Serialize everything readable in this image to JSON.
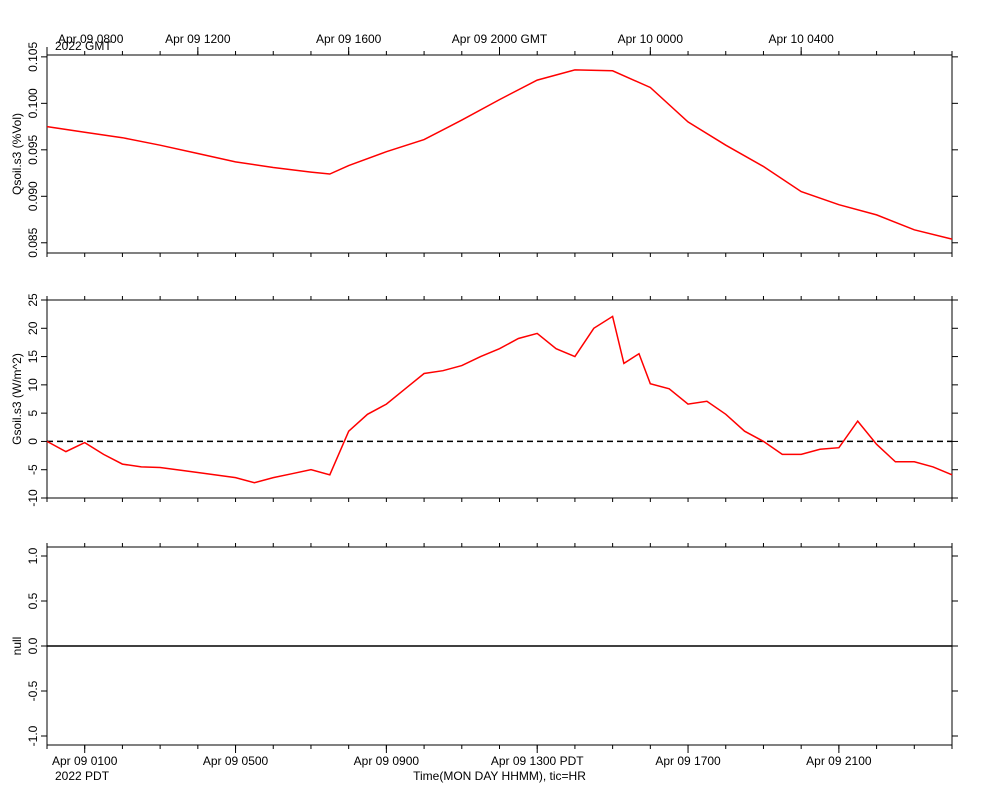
{
  "chart_data": [
    {
      "type": "line",
      "ylabel": "Qsoil.s3 (%Vol)",
      "xlim": [
        0,
        24
      ],
      "minor_tick_step": 1,
      "ylim": [
        0.0839,
        0.1052
      ],
      "yticks": [
        0.085,
        {
          "value": 0.09,
          "label": "0.090"
        },
        0.095,
        {
          "value": 0.1,
          "label": "0.100"
        },
        0.105
      ],
      "x2ticks": [
        {
          "value": 0,
          "label": "Apr 09 0800"
        },
        {
          "value": 4,
          "label": "Apr 09 1200"
        },
        {
          "value": 8,
          "label": "Apr 09 1600"
        },
        {
          "value": 12,
          "label": "Apr 09 2000 GMT"
        },
        {
          "value": 16,
          "label": "Apr 10 0000"
        },
        {
          "value": 20,
          "label": "Apr 10 0400"
        }
      ],
      "x2_year_label": "2022 GMT",
      "x": [
        0,
        1,
        2,
        3,
        4,
        5,
        6,
        7,
        7.5,
        8,
        9,
        10,
        11,
        12,
        13,
        14,
        15,
        16,
        17,
        18,
        19,
        20,
        21,
        22,
        23,
        24
      ],
      "series": [
        {
          "name": "Qsoil.s3",
          "color": "#ff0000",
          "values": [
            0.0975,
            0.0969,
            0.0963,
            0.0955,
            0.0946,
            0.0937,
            0.0931,
            0.0926,
            0.0924,
            0.0933,
            0.0948,
            0.0961,
            0.0982,
            0.1004,
            0.1025,
            0.1036,
            0.1035,
            0.1017,
            0.098,
            0.0955,
            0.0932,
            0.0905,
            0.0891,
            0.088,
            0.0864,
            0.0854
          ]
        }
      ]
    },
    {
      "type": "line",
      "ylabel": "Gsoil.s3 (W/m^2)",
      "xlim": [
        0,
        24
      ],
      "minor_tick_step": 1,
      "ylim": [
        -10,
        25
      ],
      "yticks": [
        -10,
        -5,
        0,
        5,
        10,
        15,
        20,
        25
      ],
      "reference_line": 0,
      "x": [
        0,
        0.5,
        1,
        1.5,
        2,
        2.5,
        3,
        4,
        5,
        5.5,
        6,
        6.5,
        7,
        7.5,
        8,
        8.5,
        9,
        9.5,
        10,
        10.5,
        11,
        11.5,
        12,
        12.5,
        13,
        13.5,
        14,
        14.5,
        15,
        15.3,
        15.7,
        16,
        16.5,
        17,
        17.5,
        18,
        18.5,
        19,
        19.5,
        20,
        20.5,
        21,
        21.5,
        22,
        22.5,
        23,
        23.5,
        24
      ],
      "series": [
        {
          "name": "Gsoil.s3",
          "color": "#ff0000",
          "values": [
            0,
            -1.8,
            -0.2,
            -2.3,
            -4,
            -4.5,
            -4.6,
            -5.5,
            -6.4,
            -7.3,
            -6.4,
            -5.7,
            -5,
            -5.9,
            1.8,
            4.8,
            6.6,
            9.3,
            12,
            12.5,
            13.4,
            15,
            16.4,
            18.2,
            19.1,
            16.4,
            15,
            20,
            22.1,
            13.8,
            15.5,
            10.2,
            9.3,
            6.6,
            7.1,
            4.8,
            1.8,
            0,
            -2.3,
            -2.3,
            -1.4,
            -1.1,
            3.6,
            -0.5,
            -3.6,
            -3.6,
            -4.5,
            -5.9
          ]
        }
      ]
    },
    {
      "type": "line",
      "ylabel": "null",
      "xlim": [
        0,
        24
      ],
      "minor_tick_step": 1,
      "ylim": [
        -1.1,
        1.1
      ],
      "yticks": [
        {
          "value": -1,
          "label": "-1.0"
        },
        -0.5,
        {
          "value": 0,
          "label": "0.0"
        },
        0.5,
        {
          "value": 1,
          "label": "1.0"
        }
      ],
      "xticks": [
        {
          "value": 1,
          "label": "Apr 09 0100"
        },
        {
          "value": 5,
          "label": "Apr 09 0500"
        },
        {
          "value": 9,
          "label": "Apr 09 0900"
        },
        {
          "value": 13,
          "label": "Apr 09 1300 PDT"
        },
        {
          "value": 17,
          "label": "Apr 09 1700"
        },
        {
          "value": 21,
          "label": "Apr 09 2100"
        }
      ],
      "x_year_label": "2022 PDT",
      "xlabel": "Time(MON DAY HHMM), tic=HR",
      "x": [
        0,
        24
      ],
      "series": [
        {
          "name": "null",
          "color": "#000000",
          "values": [
            0,
            0
          ]
        }
      ]
    }
  ]
}
